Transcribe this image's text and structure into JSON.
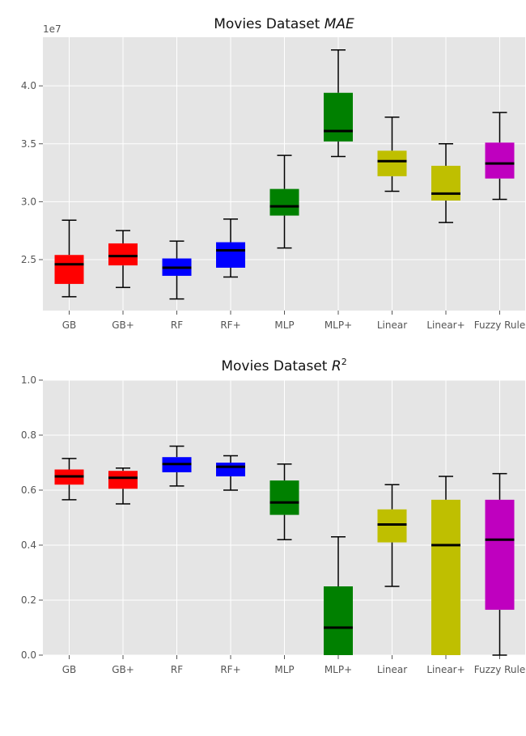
{
  "chart_data": [
    {
      "type": "box",
      "title": "Movies Dataset ",
      "title_metric": "MAE",
      "y_offset_label": "1e7",
      "ylim": [
        2.06,
        4.42
      ],
      "yticks": [
        "2.5",
        "3.0",
        "3.5",
        "4.0"
      ],
      "ytick_values": [
        2.5,
        3.0,
        3.5,
        4.0
      ],
      "grid": true,
      "categories": [
        "GB",
        "GB+",
        "RF",
        "RF+",
        "MLP",
        "MLP+",
        "Linear",
        "Linear+",
        "Fuzzy Rule"
      ],
      "colors": [
        "#ff0000",
        "#ff0000",
        "#0000ff",
        "#0000ff",
        "#008000",
        "#008000",
        "#bfbf00",
        "#bfbf00",
        "#bf00bf"
      ],
      "boxes": [
        {
          "whislo": 2.18,
          "q1": 2.29,
          "med": 2.46,
          "q3": 2.54,
          "whishi": 2.84
        },
        {
          "whislo": 2.26,
          "q1": 2.45,
          "med": 2.53,
          "q3": 2.64,
          "whishi": 2.75
        },
        {
          "whislo": 2.16,
          "q1": 2.36,
          "med": 2.43,
          "q3": 2.51,
          "whishi": 2.66
        },
        {
          "whislo": 2.35,
          "q1": 2.43,
          "med": 2.58,
          "q3": 2.65,
          "whishi": 2.85
        },
        {
          "whislo": 2.6,
          "q1": 2.88,
          "med": 2.96,
          "q3": 3.11,
          "whishi": 3.4
        },
        {
          "whislo": 3.39,
          "q1": 3.52,
          "med": 3.61,
          "q3": 3.94,
          "whishi": 4.31
        },
        {
          "whislo": 3.09,
          "q1": 3.22,
          "med": 3.35,
          "q3": 3.44,
          "whishi": 3.73
        },
        {
          "whislo": 2.82,
          "q1": 3.01,
          "med": 3.07,
          "q3": 3.31,
          "whishi": 3.5
        },
        {
          "whislo": 3.02,
          "q1": 3.2,
          "med": 3.33,
          "q3": 3.51,
          "whishi": 3.77
        }
      ]
    },
    {
      "type": "box",
      "title": "Movies Dataset ",
      "title_metric": "R",
      "title_sup": "2",
      "ylim": [
        0.0,
        1.0
      ],
      "yticks": [
        "0.0",
        "0.2",
        "0.4",
        "0.6",
        "0.8",
        "1.0"
      ],
      "ytick_values": [
        0.0,
        0.2,
        0.4,
        0.6,
        0.8,
        1.0
      ],
      "grid": true,
      "categories": [
        "GB",
        "GB+",
        "RF",
        "RF+",
        "MLP",
        "MLP+",
        "Linear",
        "Linear+",
        "Fuzzy Rule"
      ],
      "colors": [
        "#ff0000",
        "#ff0000",
        "#0000ff",
        "#0000ff",
        "#008000",
        "#008000",
        "#bfbf00",
        "#bfbf00",
        "#bf00bf"
      ],
      "boxes": [
        {
          "whislo": 0.565,
          "q1": 0.62,
          "med": 0.65,
          "q3": 0.675,
          "whishi": 0.715
        },
        {
          "whislo": 0.55,
          "q1": 0.605,
          "med": 0.645,
          "q3": 0.67,
          "whishi": 0.68
        },
        {
          "whislo": 0.615,
          "q1": 0.665,
          "med": 0.695,
          "q3": 0.72,
          "whishi": 0.76
        },
        {
          "whislo": 0.6,
          "q1": 0.65,
          "med": 0.685,
          "q3": 0.7,
          "whishi": 0.725
        },
        {
          "whislo": 0.42,
          "q1": 0.51,
          "med": 0.555,
          "q3": 0.635,
          "whishi": 0.695
        },
        {
          "whislo": 0.0,
          "q1": 0.0,
          "med": 0.1,
          "q3": 0.25,
          "whishi": 0.43
        },
        {
          "whislo": 0.25,
          "q1": 0.41,
          "med": 0.475,
          "q3": 0.53,
          "whishi": 0.62
        },
        {
          "whislo": 0.0,
          "q1": 0.0,
          "med": 0.4,
          "q3": 0.565,
          "whishi": 0.65
        },
        {
          "whislo": 0.0,
          "q1": 0.165,
          "med": 0.42,
          "q3": 0.565,
          "whishi": 0.66
        }
      ]
    }
  ]
}
